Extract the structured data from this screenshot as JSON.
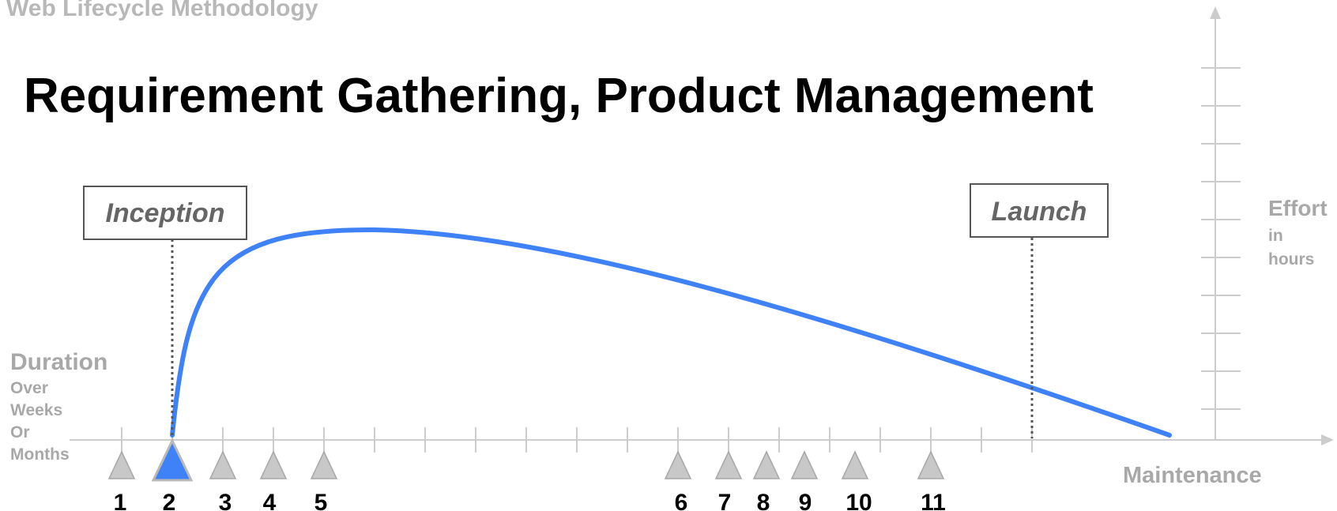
{
  "header": {
    "subtitle": "Web Lifecycle Methodology",
    "title": "Requirement Gathering, Product Management"
  },
  "axes": {
    "y_label": "Effort",
    "y_label_sub": [
      "in",
      "hours"
    ],
    "x_label": "Duration",
    "x_label_sub": [
      "Over",
      "Weeks",
      "Or",
      "Months"
    ],
    "x_end_label": "Maintenance"
  },
  "milestones": {
    "start": {
      "label": "Inception",
      "at_step": 2
    },
    "end": {
      "label": "Launch",
      "at_step": 12
    }
  },
  "steps": {
    "labels": [
      "1",
      "2",
      "3",
      "4",
      "5",
      "6",
      "7",
      "8",
      "9",
      "10",
      "11"
    ],
    "active": "2"
  },
  "colors": {
    "curve": "#3f82f7",
    "active_marker": "#3f82f7",
    "inactive_marker": "#c8c8c8",
    "axis": "#cccccc",
    "label_gray": "#a8a8a8"
  }
}
